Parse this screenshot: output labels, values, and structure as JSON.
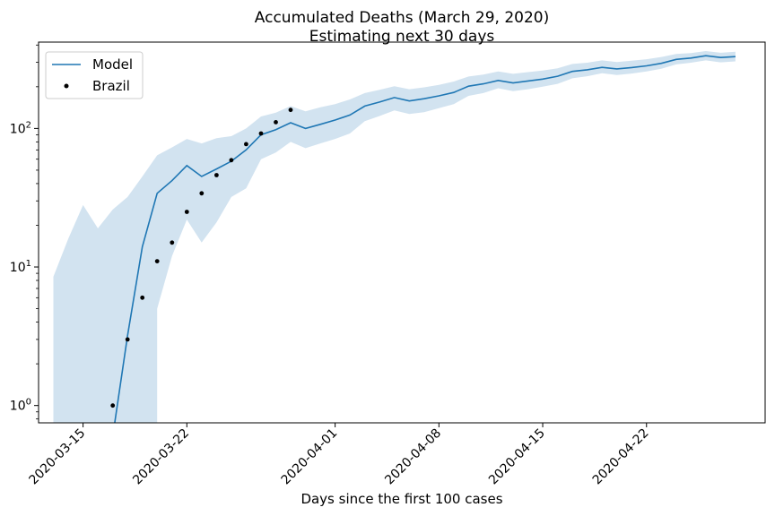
{
  "chart_data": {
    "type": "line",
    "title": "Accumulated Deaths (March 29, 2020)",
    "subtitle": "Estimating next 30 days",
    "xlabel": "Days since the first 100 cases",
    "ylabel": "",
    "y_scale": "log",
    "ylim": [
      0.75,
      420
    ],
    "xlim": [
      "2020-03-12",
      "2020-04-30"
    ],
    "x_ticks": [
      "2020-03-15",
      "2020-03-22",
      "2020-04-01",
      "2020-04-08",
      "2020-04-15",
      "2020-04-22"
    ],
    "y_ticks": [
      {
        "value": 1,
        "label": "10^0"
      },
      {
        "value": 10,
        "label": "10^1"
      },
      {
        "value": 100,
        "label": "10^2"
      }
    ],
    "legend": {
      "placement": "top-left",
      "entries": [
        {
          "label": "Model",
          "marker": "line"
        },
        {
          "label": "Brazil",
          "marker": "dot"
        }
      ]
    },
    "colors": {
      "model": "#1f77b4",
      "band": "#d2e3f0",
      "observed": "#000000"
    },
    "series": [
      {
        "name": "Model",
        "points": [
          [
            "2020-03-17",
            0.6
          ],
          [
            "2020-03-18",
            3.2
          ],
          [
            "2020-03-19",
            14
          ],
          [
            "2020-03-20",
            34
          ],
          [
            "2020-03-21",
            42
          ],
          [
            "2020-03-22",
            54
          ],
          [
            "2020-03-23",
            45
          ],
          [
            "2020-03-24",
            51
          ],
          [
            "2020-03-25",
            58
          ],
          [
            "2020-03-26",
            70
          ],
          [
            "2020-03-27",
            90
          ],
          [
            "2020-03-28",
            98
          ],
          [
            "2020-03-29",
            110
          ],
          [
            "2020-03-30",
            100
          ],
          [
            "2020-03-31",
            107
          ],
          [
            "2020-04-01",
            115
          ],
          [
            "2020-04-02",
            125
          ],
          [
            "2020-04-03",
            145
          ],
          [
            "2020-04-04",
            155
          ],
          [
            "2020-04-05",
            167
          ],
          [
            "2020-04-06",
            158
          ],
          [
            "2020-04-07",
            164
          ],
          [
            "2020-04-08",
            172
          ],
          [
            "2020-04-09",
            182
          ],
          [
            "2020-04-10",
            202
          ],
          [
            "2020-04-11",
            210
          ],
          [
            "2020-04-12",
            222
          ],
          [
            "2020-04-13",
            213
          ],
          [
            "2020-04-14",
            220
          ],
          [
            "2020-04-15",
            227
          ],
          [
            "2020-04-16",
            238
          ],
          [
            "2020-04-17",
            258
          ],
          [
            "2020-04-18",
            265
          ],
          [
            "2020-04-19",
            276
          ],
          [
            "2020-04-20",
            269
          ],
          [
            "2020-04-21",
            275
          ],
          [
            "2020-04-22",
            283
          ],
          [
            "2020-04-23",
            295
          ],
          [
            "2020-04-24",
            315
          ],
          [
            "2020-04-25",
            322
          ],
          [
            "2020-04-26",
            335
          ],
          [
            "2020-04-27",
            325
          ],
          [
            "2020-04-28",
            330
          ]
        ],
        "band_lower": [
          [
            "2020-03-13",
            0.6
          ],
          [
            "2020-03-20",
            0.6
          ],
          [
            "2020-03-20",
            5
          ],
          [
            "2020-03-21",
            12
          ],
          [
            "2020-03-22",
            22
          ],
          [
            "2020-03-23",
            15
          ],
          [
            "2020-03-24",
            21
          ],
          [
            "2020-03-25",
            32
          ],
          [
            "2020-03-26",
            37
          ],
          [
            "2020-03-27",
            60
          ],
          [
            "2020-03-28",
            67
          ],
          [
            "2020-03-29",
            80
          ],
          [
            "2020-03-30",
            72
          ],
          [
            "2020-03-31",
            78
          ],
          [
            "2020-04-01",
            84
          ],
          [
            "2020-04-02",
            92
          ],
          [
            "2020-04-03",
            113
          ],
          [
            "2020-04-04",
            123
          ],
          [
            "2020-04-05",
            135
          ],
          [
            "2020-04-06",
            127
          ],
          [
            "2020-04-07",
            131
          ],
          [
            "2020-04-08",
            140
          ],
          [
            "2020-04-09",
            150
          ],
          [
            "2020-04-10",
            172
          ],
          [
            "2020-04-11",
            180
          ],
          [
            "2020-04-12",
            195
          ],
          [
            "2020-04-13",
            186
          ],
          [
            "2020-04-14",
            192
          ],
          [
            "2020-04-15",
            200
          ],
          [
            "2020-04-16",
            210
          ],
          [
            "2020-04-17",
            230
          ],
          [
            "2020-04-18",
            238
          ],
          [
            "2020-04-19",
            250
          ],
          [
            "2020-04-20",
            243
          ],
          [
            "2020-04-21",
            249
          ],
          [
            "2020-04-22",
            258
          ],
          [
            "2020-04-23",
            270
          ],
          [
            "2020-04-24",
            290
          ],
          [
            "2020-04-25",
            298
          ],
          [
            "2020-04-26",
            310
          ],
          [
            "2020-04-27",
            300
          ],
          [
            "2020-04-28",
            305
          ]
        ],
        "band_upper": [
          [
            "2020-03-13",
            8.5
          ],
          [
            "2020-03-14",
            16
          ],
          [
            "2020-03-15",
            28
          ],
          [
            "2020-03-16",
            19
          ],
          [
            "2020-03-17",
            26
          ],
          [
            "2020-03-18",
            32
          ],
          [
            "2020-03-19",
            45
          ],
          [
            "2020-03-20",
            64
          ],
          [
            "2020-03-21",
            73
          ],
          [
            "2020-03-22",
            84
          ],
          [
            "2020-03-23",
            78
          ],
          [
            "2020-03-24",
            85
          ],
          [
            "2020-03-25",
            88
          ],
          [
            "2020-03-26",
            100
          ],
          [
            "2020-03-27",
            122
          ],
          [
            "2020-03-28",
            130
          ],
          [
            "2020-03-29",
            145
          ],
          [
            "2020-03-30",
            133
          ],
          [
            "2020-03-31",
            142
          ],
          [
            "2020-04-01",
            150
          ],
          [
            "2020-04-02",
            162
          ],
          [
            "2020-04-03",
            180
          ],
          [
            "2020-04-04",
            190
          ],
          [
            "2020-04-05",
            202
          ],
          [
            "2020-04-06",
            192
          ],
          [
            "2020-04-07",
            198
          ],
          [
            "2020-04-08",
            206
          ],
          [
            "2020-04-09",
            218
          ],
          [
            "2020-04-10",
            237
          ],
          [
            "2020-04-11",
            245
          ],
          [
            "2020-04-12",
            258
          ],
          [
            "2020-04-13",
            248
          ],
          [
            "2020-04-14",
            255
          ],
          [
            "2020-04-15",
            262
          ],
          [
            "2020-04-16",
            272
          ],
          [
            "2020-04-17",
            292
          ],
          [
            "2020-04-18",
            298
          ],
          [
            "2020-04-19",
            310
          ],
          [
            "2020-04-20",
            302
          ],
          [
            "2020-04-21",
            308
          ],
          [
            "2020-04-22",
            316
          ],
          [
            "2020-04-23",
            328
          ],
          [
            "2020-04-24",
            345
          ],
          [
            "2020-04-25",
            350
          ],
          [
            "2020-04-26",
            362
          ],
          [
            "2020-04-27",
            352
          ],
          [
            "2020-04-28",
            358
          ]
        ]
      },
      {
        "name": "Brazil",
        "points": [
          [
            "2020-03-17",
            1
          ],
          [
            "2020-03-18",
            3
          ],
          [
            "2020-03-19",
            6
          ],
          [
            "2020-03-20",
            11
          ],
          [
            "2020-03-21",
            15
          ],
          [
            "2020-03-22",
            25
          ],
          [
            "2020-03-23",
            34
          ],
          [
            "2020-03-24",
            46
          ],
          [
            "2020-03-25",
            59
          ],
          [
            "2020-03-26",
            77
          ],
          [
            "2020-03-27",
            92
          ],
          [
            "2020-03-28",
            111
          ],
          [
            "2020-03-29",
            136
          ]
        ]
      }
    ]
  }
}
